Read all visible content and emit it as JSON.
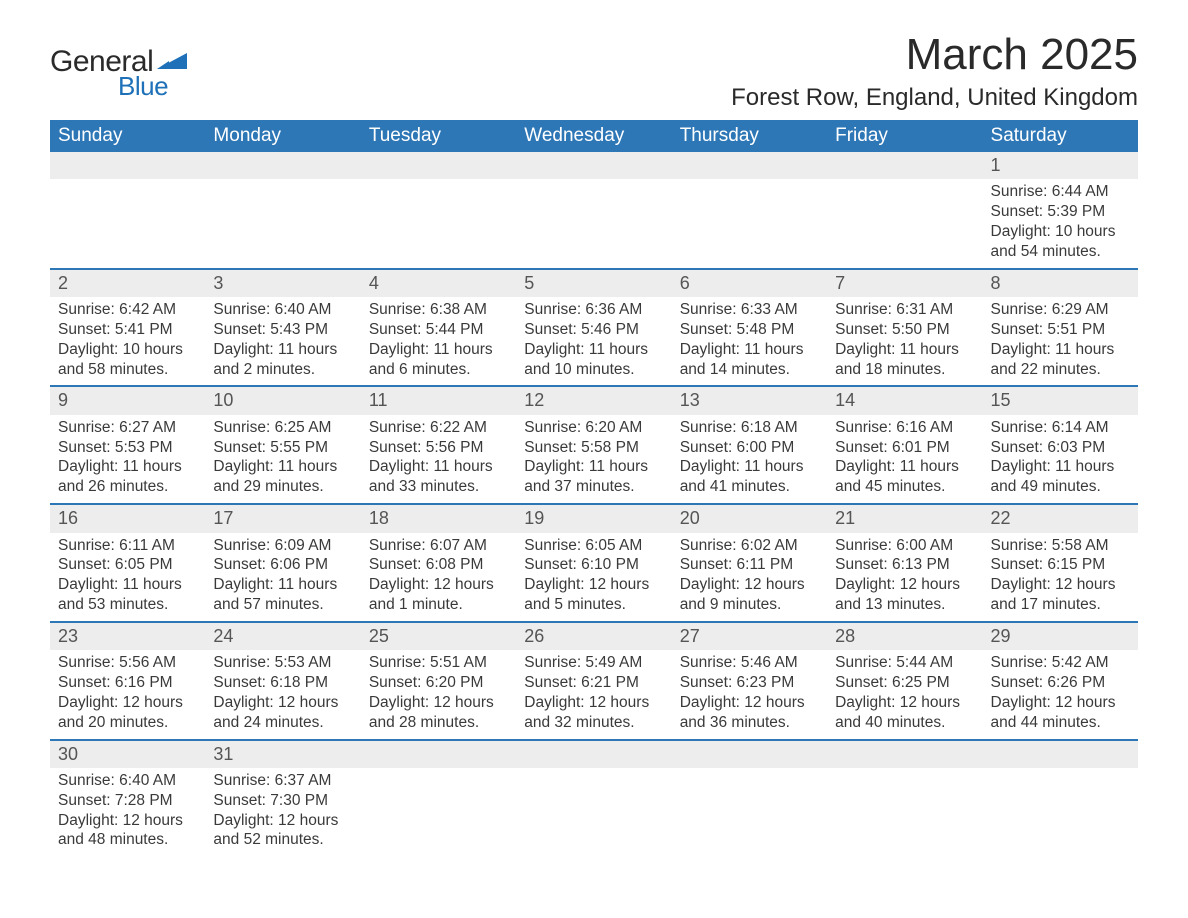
{
  "brand": {
    "text_general": "General",
    "text_blue": "Blue",
    "mark_color": "#1e71b8"
  },
  "title": "March 2025",
  "location": "Forest Row, England, United Kingdom",
  "colors": {
    "header_bg": "#2e77b6",
    "header_text": "#ffffff",
    "daynum_bg": "#ededed",
    "row_divider": "#2e77b6",
    "body_text": "#3a3a3a",
    "page_bg": "#ffffff"
  },
  "typography": {
    "title_fontsize_pt": 33,
    "location_fontsize_pt": 18,
    "weekday_fontsize_pt": 14,
    "daynum_fontsize_pt": 14,
    "body_fontsize_pt": 12,
    "font_family": "Arial"
  },
  "calendar": {
    "type": "calendar-table",
    "weekdays": [
      "Sunday",
      "Monday",
      "Tuesday",
      "Wednesday",
      "Thursday",
      "Friday",
      "Saturday"
    ],
    "weeks": [
      [
        null,
        null,
        null,
        null,
        null,
        null,
        {
          "n": "1",
          "sunrise": "Sunrise: 6:44 AM",
          "sunset": "Sunset: 5:39 PM",
          "daylight": "Daylight: 10 hours and 54 minutes."
        }
      ],
      [
        {
          "n": "2",
          "sunrise": "Sunrise: 6:42 AM",
          "sunset": "Sunset: 5:41 PM",
          "daylight": "Daylight: 10 hours and 58 minutes."
        },
        {
          "n": "3",
          "sunrise": "Sunrise: 6:40 AM",
          "sunset": "Sunset: 5:43 PM",
          "daylight": "Daylight: 11 hours and 2 minutes."
        },
        {
          "n": "4",
          "sunrise": "Sunrise: 6:38 AM",
          "sunset": "Sunset: 5:44 PM",
          "daylight": "Daylight: 11 hours and 6 minutes."
        },
        {
          "n": "5",
          "sunrise": "Sunrise: 6:36 AM",
          "sunset": "Sunset: 5:46 PM",
          "daylight": "Daylight: 11 hours and 10 minutes."
        },
        {
          "n": "6",
          "sunrise": "Sunrise: 6:33 AM",
          "sunset": "Sunset: 5:48 PM",
          "daylight": "Daylight: 11 hours and 14 minutes."
        },
        {
          "n": "7",
          "sunrise": "Sunrise: 6:31 AM",
          "sunset": "Sunset: 5:50 PM",
          "daylight": "Daylight: 11 hours and 18 minutes."
        },
        {
          "n": "8",
          "sunrise": "Sunrise: 6:29 AM",
          "sunset": "Sunset: 5:51 PM",
          "daylight": "Daylight: 11 hours and 22 minutes."
        }
      ],
      [
        {
          "n": "9",
          "sunrise": "Sunrise: 6:27 AM",
          "sunset": "Sunset: 5:53 PM",
          "daylight": "Daylight: 11 hours and 26 minutes."
        },
        {
          "n": "10",
          "sunrise": "Sunrise: 6:25 AM",
          "sunset": "Sunset: 5:55 PM",
          "daylight": "Daylight: 11 hours and 29 minutes."
        },
        {
          "n": "11",
          "sunrise": "Sunrise: 6:22 AM",
          "sunset": "Sunset: 5:56 PM",
          "daylight": "Daylight: 11 hours and 33 minutes."
        },
        {
          "n": "12",
          "sunrise": "Sunrise: 6:20 AM",
          "sunset": "Sunset: 5:58 PM",
          "daylight": "Daylight: 11 hours and 37 minutes."
        },
        {
          "n": "13",
          "sunrise": "Sunrise: 6:18 AM",
          "sunset": "Sunset: 6:00 PM",
          "daylight": "Daylight: 11 hours and 41 minutes."
        },
        {
          "n": "14",
          "sunrise": "Sunrise: 6:16 AM",
          "sunset": "Sunset: 6:01 PM",
          "daylight": "Daylight: 11 hours and 45 minutes."
        },
        {
          "n": "15",
          "sunrise": "Sunrise: 6:14 AM",
          "sunset": "Sunset: 6:03 PM",
          "daylight": "Daylight: 11 hours and 49 minutes."
        }
      ],
      [
        {
          "n": "16",
          "sunrise": "Sunrise: 6:11 AM",
          "sunset": "Sunset: 6:05 PM",
          "daylight": "Daylight: 11 hours and 53 minutes."
        },
        {
          "n": "17",
          "sunrise": "Sunrise: 6:09 AM",
          "sunset": "Sunset: 6:06 PM",
          "daylight": "Daylight: 11 hours and 57 minutes."
        },
        {
          "n": "18",
          "sunrise": "Sunrise: 6:07 AM",
          "sunset": "Sunset: 6:08 PM",
          "daylight": "Daylight: 12 hours and 1 minute."
        },
        {
          "n": "19",
          "sunrise": "Sunrise: 6:05 AM",
          "sunset": "Sunset: 6:10 PM",
          "daylight": "Daylight: 12 hours and 5 minutes."
        },
        {
          "n": "20",
          "sunrise": "Sunrise: 6:02 AM",
          "sunset": "Sunset: 6:11 PM",
          "daylight": "Daylight: 12 hours and 9 minutes."
        },
        {
          "n": "21",
          "sunrise": "Sunrise: 6:00 AM",
          "sunset": "Sunset: 6:13 PM",
          "daylight": "Daylight: 12 hours and 13 minutes."
        },
        {
          "n": "22",
          "sunrise": "Sunrise: 5:58 AM",
          "sunset": "Sunset: 6:15 PM",
          "daylight": "Daylight: 12 hours and 17 minutes."
        }
      ],
      [
        {
          "n": "23",
          "sunrise": "Sunrise: 5:56 AM",
          "sunset": "Sunset: 6:16 PM",
          "daylight": "Daylight: 12 hours and 20 minutes."
        },
        {
          "n": "24",
          "sunrise": "Sunrise: 5:53 AM",
          "sunset": "Sunset: 6:18 PM",
          "daylight": "Daylight: 12 hours and 24 minutes."
        },
        {
          "n": "25",
          "sunrise": "Sunrise: 5:51 AM",
          "sunset": "Sunset: 6:20 PM",
          "daylight": "Daylight: 12 hours and 28 minutes."
        },
        {
          "n": "26",
          "sunrise": "Sunrise: 5:49 AM",
          "sunset": "Sunset: 6:21 PM",
          "daylight": "Daylight: 12 hours and 32 minutes."
        },
        {
          "n": "27",
          "sunrise": "Sunrise: 5:46 AM",
          "sunset": "Sunset: 6:23 PM",
          "daylight": "Daylight: 12 hours and 36 minutes."
        },
        {
          "n": "28",
          "sunrise": "Sunrise: 5:44 AM",
          "sunset": "Sunset: 6:25 PM",
          "daylight": "Daylight: 12 hours and 40 minutes."
        },
        {
          "n": "29",
          "sunrise": "Sunrise: 5:42 AM",
          "sunset": "Sunset: 6:26 PM",
          "daylight": "Daylight: 12 hours and 44 minutes."
        }
      ],
      [
        {
          "n": "30",
          "sunrise": "Sunrise: 6:40 AM",
          "sunset": "Sunset: 7:28 PM",
          "daylight": "Daylight: 12 hours and 48 minutes."
        },
        {
          "n": "31",
          "sunrise": "Sunrise: 6:37 AM",
          "sunset": "Sunset: 7:30 PM",
          "daylight": "Daylight: 12 hours and 52 minutes."
        },
        null,
        null,
        null,
        null,
        null
      ]
    ]
  }
}
